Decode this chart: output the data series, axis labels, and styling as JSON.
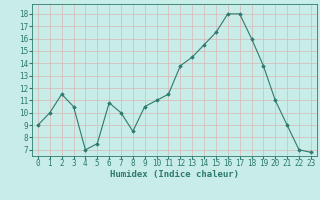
{
  "x": [
    0,
    1,
    2,
    3,
    4,
    5,
    6,
    7,
    8,
    9,
    10,
    11,
    12,
    13,
    14,
    15,
    16,
    17,
    18,
    19,
    20,
    21,
    22,
    23
  ],
  "y": [
    9,
    10,
    11.5,
    10.5,
    7,
    7.5,
    10.8,
    10,
    8.5,
    10.5,
    11,
    11.5,
    13.8,
    14.5,
    15.5,
    16.5,
    18,
    18,
    16,
    13.8,
    11,
    9,
    7,
    6.8
  ],
  "line_color": "#2d7a6e",
  "marker": "D",
  "marker_size": 1.8,
  "line_width": 0.8,
  "bg_color": "#c8ece8",
  "grid_color": "#d9b8b8",
  "xlabel": "Humidex (Indice chaleur)",
  "xlabel_fontsize": 6.5,
  "tick_fontsize": 5.5,
  "ylim": [
    6.5,
    18.8
  ],
  "yticks": [
    7,
    8,
    9,
    10,
    11,
    12,
    13,
    14,
    15,
    16,
    17,
    18
  ],
  "xticks": [
    0,
    1,
    2,
    3,
    4,
    5,
    6,
    7,
    8,
    9,
    10,
    11,
    12,
    13,
    14,
    15,
    16,
    17,
    18,
    19,
    20,
    21,
    22,
    23
  ]
}
